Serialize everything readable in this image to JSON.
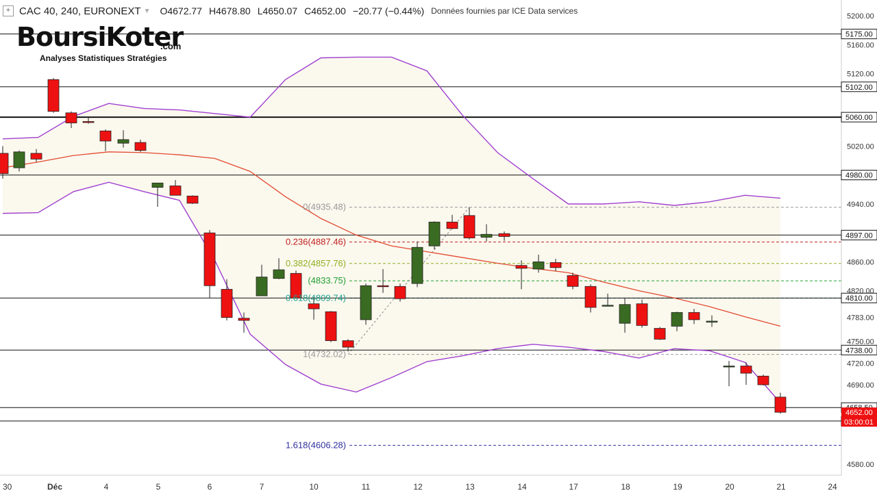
{
  "header": {
    "symbol": "CAC 40, 240, EURONEXT",
    "open": "O4672.77",
    "high": "H4678.80",
    "low": "L4650.07",
    "close": "C4652.00",
    "change": "−20.77 (−0.44%)",
    "source": "Données fournies par ICE Data services"
  },
  "logo": {
    "word": "BoursiKoter",
    "suffix": ".com",
    "tagline": "Analyses Statistiques Stratégies"
  },
  "colors": {
    "up": "#3a6b22",
    "down": "#ee1111",
    "band": "#a040d0",
    "ma": "#e24a30",
    "band_fill": "#fbf8ee",
    "level_line": "#111111"
  },
  "chart_data": {
    "type": "candlestick",
    "symbol": "CAC 40",
    "timeframe": "240",
    "exchange": "EURONEXT",
    "ylim": [
      4565,
      5222
    ],
    "y_ticks": [
      5200,
      5160,
      5120,
      5060,
      5020,
      4980,
      4940,
      4900,
      4860,
      4820,
      4783,
      4750,
      4720,
      4690,
      4580
    ],
    "x_ticks": [
      "30",
      "Déc",
      "4",
      "5",
      "6",
      "7",
      "10",
      "11",
      "12",
      "13",
      "14",
      "17",
      "18",
      "19",
      "20",
      "21",
      "24"
    ],
    "horizontal_levels": [
      5175.0,
      5102.0,
      5060.0,
      4980.0,
      4897.0,
      4810.0,
      4738.0,
      4658.5,
      4639.91
    ],
    "last_price_label": "4652.00",
    "countdown_label": "03:00:01",
    "fibonacci": [
      {
        "label": "0(4935.48)",
        "value": 4935.48,
        "color": "#999999"
      },
      {
        "label": "0.236(4887.46)",
        "value": 4887.46,
        "color": "#c02020"
      },
      {
        "label": "0.382(4857.76)",
        "value": 4857.76,
        "color": "#90b020"
      },
      {
        "label": "(4833.75)",
        "value": 4833.75,
        "color": "#20a030"
      },
      {
        "label": "0.618(4809.74)",
        "value": 4809.74,
        "color": "#20a090"
      },
      {
        "label": "1(4732.02)",
        "value": 4732.02,
        "color": "#999999"
      },
      {
        "label": "1.618(4606.28)",
        "value": 4606.28,
        "color": "#3030a0"
      }
    ],
    "candles": [
      {
        "o": 5010,
        "h": 5020,
        "l": 4975,
        "c": 4982
      },
      {
        "o": 4990,
        "h": 5014,
        "l": 4985,
        "c": 5012
      },
      {
        "o": 5010,
        "h": 5016,
        "l": 4998,
        "c": 5002
      },
      {
        "o": 5112,
        "h": 5114,
        "l": 5066,
        "c": 5068
      },
      {
        "o": 5066,
        "h": 5068,
        "l": 5045,
        "c": 5052
      },
      {
        "o": 5054,
        "h": 5060,
        "l": 5051,
        "c": 5053
      },
      {
        "o": 5041,
        "h": 5043,
        "l": 5013,
        "c": 5027
      },
      {
        "o": 5024,
        "h": 5042,
        "l": 5018,
        "c": 5029
      },
      {
        "o": 5025,
        "h": 5029,
        "l": 5012,
        "c": 5014
      },
      {
        "o": 4963,
        "h": 4967,
        "l": 4936,
        "c": 4969
      },
      {
        "o": 4965,
        "h": 4973,
        "l": 4952,
        "c": 4952
      },
      {
        "o": 4951,
        "h": 4952,
        "l": 4940,
        "c": 4941
      },
      {
        "o": 4900,
        "h": 4904,
        "l": 4810,
        "c": 4827
      },
      {
        "o": 4822,
        "h": 4836,
        "l": 4779,
        "c": 4783
      },
      {
        "o": 4782,
        "h": 4790,
        "l": 4762,
        "c": 4779
      },
      {
        "o": 4813,
        "h": 4856,
        "l": 4813,
        "c": 4839
      },
      {
        "o": 4837,
        "h": 4865,
        "l": 4836,
        "c": 4849
      },
      {
        "o": 4844,
        "h": 4848,
        "l": 4810,
        "c": 4810
      },
      {
        "o": 4802,
        "h": 4811,
        "l": 4780,
        "c": 4795
      },
      {
        "o": 4791,
        "h": 4792,
        "l": 4749,
        "c": 4751
      },
      {
        "o": 4751,
        "h": 4753,
        "l": 4736,
        "c": 4742
      },
      {
        "o": 4780,
        "h": 4830,
        "l": 4773,
        "c": 4827
      },
      {
        "o": 4827,
        "h": 4850,
        "l": 4817,
        "c": 4826
      },
      {
        "o": 4826,
        "h": 4830,
        "l": 4805,
        "c": 4809
      },
      {
        "o": 4830,
        "h": 4888,
        "l": 4825,
        "c": 4880
      },
      {
        "o": 4882,
        "h": 4916,
        "l": 4877,
        "c": 4915
      },
      {
        "o": 4915,
        "h": 4925,
        "l": 4905,
        "c": 4906
      },
      {
        "o": 4924,
        "h": 4935,
        "l": 4891,
        "c": 4893
      },
      {
        "o": 4894,
        "h": 4912,
        "l": 4888,
        "c": 4898
      },
      {
        "o": 4899,
        "h": 4902,
        "l": 4889,
        "c": 4895
      },
      {
        "o": 4855,
        "h": 4862,
        "l": 4822,
        "c": 4851
      },
      {
        "o": 4850,
        "h": 4870,
        "l": 4845,
        "c": 4860
      },
      {
        "o": 4859,
        "h": 4864,
        "l": 4847,
        "c": 4852
      },
      {
        "o": 4841,
        "h": 4845,
        "l": 4822,
        "c": 4826
      },
      {
        "o": 4826,
        "h": 4829,
        "l": 4790,
        "c": 4797
      },
      {
        "o": 4800,
        "h": 4816,
        "l": 4800,
        "c": 4800
      },
      {
        "o": 4775,
        "h": 4810,
        "l": 4762,
        "c": 4801
      },
      {
        "o": 4802,
        "h": 4808,
        "l": 4769,
        "c": 4772
      },
      {
        "o": 4768,
        "h": 4770,
        "l": 4752,
        "c": 4753
      },
      {
        "o": 4771,
        "h": 4791,
        "l": 4764,
        "c": 4790
      },
      {
        "o": 4790,
        "h": 4795,
        "l": 4774,
        "c": 4780
      },
      {
        "o": 4777,
        "h": 4786,
        "l": 4770,
        "c": 4778
      },
      {
        "o": 4715,
        "h": 4723,
        "l": 4688,
        "c": 4716
      },
      {
        "o": 4716,
        "h": 4721,
        "l": 4690,
        "c": 4706
      },
      {
        "o": 4702,
        "h": 4704,
        "l": 4689,
        "c": 4690
      },
      {
        "o": 4673,
        "h": 4679,
        "l": 4650,
        "c": 4652
      }
    ],
    "candle_x": [
      4,
      28,
      53,
      78,
      104,
      129,
      154,
      180,
      205,
      230,
      256,
      281,
      306,
      331,
      356,
      382,
      407,
      432,
      458,
      483,
      508,
      534,
      559,
      584,
      609,
      634,
      660,
      685,
      710,
      736,
      761,
      786,
      811,
      836,
      862,
      887,
      912,
      937,
      963,
      988,
      1013,
      1039,
      1064,
      1089,
      1114,
      1139
    ],
    "ma": [
      4990,
      4998,
      5007,
      5012,
      5011,
      5008,
      5003,
      4985,
      4950,
      4920,
      4897,
      4882,
      4874,
      4866,
      4858,
      4851,
      4845,
      4832,
      4820,
      4810,
      4798,
      4784,
      4771
    ],
    "upper_band": [
      5030,
      5032,
      5061,
      5079,
      5072,
      5070,
      5065,
      5060,
      5112,
      5142,
      5143,
      5143,
      5124,
      5063,
      5011,
      4975,
      4940,
      4940,
      4943,
      4938,
      4943,
      4952,
      4948
    ],
    "lower_band": [
      4927,
      4928,
      4957,
      4970,
      4957,
      4945,
      4862,
      4760,
      4718,
      4691,
      4680,
      4700,
      4722,
      4730,
      4740,
      4746,
      4742,
      4736,
      4727,
      4740,
      4737,
      4721,
      4665
    ]
  }
}
